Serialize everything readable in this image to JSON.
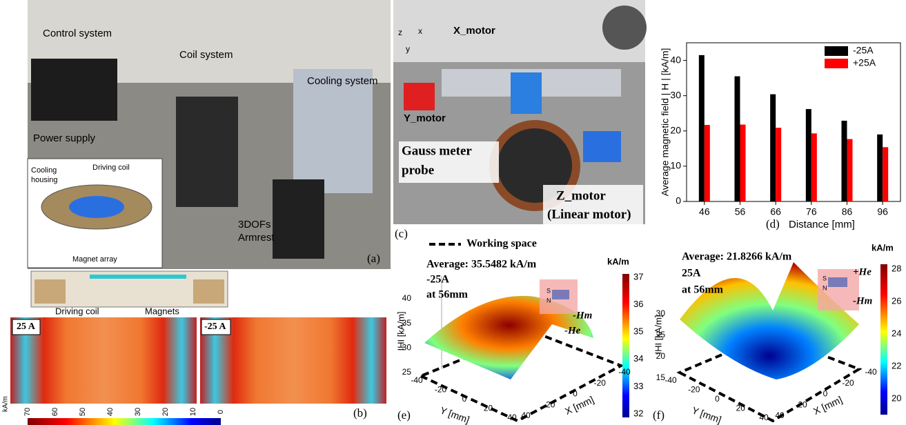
{
  "panel_a": {
    "control": "Control system",
    "coil": "Coil system",
    "cooling": "Cooling system",
    "power": "Power supply",
    "driving": "Driving  coil",
    "housing_1": "Cooling",
    "housing_2": "housing",
    "magnet_array": "Magnet array",
    "armrest_1": "3DOFs",
    "armrest_2": "Armrest",
    "tag": "(a)"
  },
  "panel_b": {
    "driving": "Driving coil",
    "magnets": "Magnets",
    "pos": "25 A",
    "neg": "-25 A",
    "colorbar_unit": "kA/m",
    "colorbar_ticks": [
      70,
      60,
      50,
      40,
      30,
      20,
      10,
      0
    ],
    "tag": "(b)"
  },
  "panel_c": {
    "axis_z": "z",
    "axis_x": "x",
    "axis_y": "y",
    "x_motor": "X_motor",
    "y_motor": "Y_motor",
    "probe_1": "Gauss meter",
    "probe_2": "probe",
    "z_motor_1": "Z_motor",
    "z_motor_2": "(Linear motor)",
    "tag": "(c)"
  },
  "chart_data": {
    "type": "bar",
    "tag": "(d)",
    "x_label": "Distance [mm]",
    "y_label": "Average magnetic field | H | [kA/m]",
    "categories": [
      "46",
      "56",
      "66",
      "76",
      "86",
      "96"
    ],
    "series": [
      {
        "name": "-25A",
        "color": "#000000",
        "values": [
          41.5,
          35.5,
          30.4,
          26.2,
          22.9,
          19.0
        ]
      },
      {
        "name": "+25A",
        "color": "#ff0000",
        "values": [
          21.7,
          21.8,
          20.9,
          19.3,
          17.7,
          15.4
        ]
      }
    ],
    "ylim": [
      0,
      45
    ],
    "yticks": [
      0,
      10,
      20,
      30,
      40
    ],
    "legend": "upper right"
  },
  "working_space": "Working space",
  "panel_e": {
    "title_1": "Average: 35.5482 kA/m",
    "title_2": "-25A",
    "title_3": "at 56mm",
    "z_label": "IHI [kA/m]",
    "y_label": "Y [mm]",
    "x_label": "X [mm]",
    "zticks": [
      25,
      30,
      35,
      40
    ],
    "yticks": [
      40,
      20,
      0,
      -20,
      -40
    ],
    "xticks": [
      40,
      20,
      0,
      -20,
      -40
    ],
    "pole_s": "S",
    "pole_n": "N",
    "hm": "-Hm",
    "he": "-He",
    "colorbar_unit": "kA/m",
    "colorbar_ticks": [
      37,
      36,
      35,
      34,
      33,
      32
    ],
    "tag": "(e)"
  },
  "panel_f": {
    "title_1": "Average: 21.8266 kA/m",
    "title_2": "25A",
    "title_3": "at 56mm",
    "z_label": "IHI [kA/m]",
    "y_label": "Y [mm]",
    "x_label": "X [mm]",
    "zticks": [
      15,
      20,
      25,
      30
    ],
    "yticks": [
      40,
      20,
      0,
      -20,
      -40
    ],
    "xticks": [
      40,
      20,
      0,
      -20,
      -40
    ],
    "pole_s": "S",
    "pole_n": "N",
    "hm": "-Hm",
    "he": "+He",
    "colorbar_unit": "kA/m",
    "colorbar_ticks": [
      28,
      26,
      24,
      22,
      20
    ],
    "tag": "(f)"
  }
}
